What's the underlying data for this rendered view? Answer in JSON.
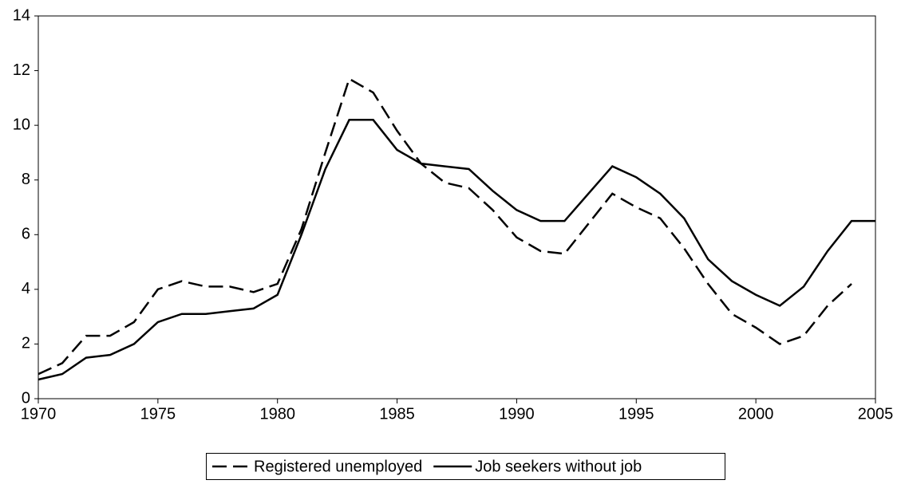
{
  "chart_data": {
    "type": "line",
    "x": [
      1970,
      1971,
      1972,
      1973,
      1974,
      1975,
      1976,
      1977,
      1978,
      1979,
      1980,
      1981,
      1982,
      1983,
      1984,
      1985,
      1986,
      1987,
      1988,
      1989,
      1990,
      1991,
      1992,
      1993,
      1994,
      1995,
      1996,
      1997,
      1998,
      1999,
      2000,
      2001,
      2002,
      2003,
      2004,
      2005
    ],
    "series": [
      {
        "name": "Registered unemployed",
        "color": "#000000",
        "line_style": "dashed",
        "values": [
          0.9,
          1.3,
          2.3,
          2.3,
          2.8,
          4.0,
          4.3,
          4.1,
          4.1,
          3.9,
          4.2,
          6.2,
          9.0,
          11.7,
          11.2,
          9.8,
          8.6,
          7.9,
          7.7,
          6.9,
          5.9,
          5.4,
          5.3,
          6.4,
          7.5,
          7.0,
          6.6,
          5.5,
          4.2,
          3.1,
          2.6,
          2.0,
          2.3,
          3.4,
          4.2,
          null
        ]
      },
      {
        "name": "Job seekers without job",
        "color": "#000000",
        "line_style": "solid",
        "values": [
          0.7,
          0.9,
          1.5,
          1.6,
          2.0,
          2.8,
          3.1,
          3.1,
          3.2,
          3.3,
          3.8,
          6.0,
          8.4,
          10.2,
          10.2,
          9.1,
          8.6,
          8.5,
          8.4,
          7.6,
          6.9,
          6.5,
          6.5,
          7.5,
          8.5,
          8.1,
          7.5,
          6.6,
          5.1,
          4.3,
          3.8,
          3.4,
          4.1,
          5.4,
          6.5,
          6.5
        ]
      }
    ],
    "xlim": [
      1970,
      2005
    ],
    "xticks": [
      1970,
      1975,
      1980,
      1985,
      1990,
      1995,
      2000,
      2005
    ],
    "ylim": [
      0,
      14
    ],
    "yticks": [
      0,
      2,
      4,
      6,
      8,
      10,
      12,
      14
    ],
    "grid": false,
    "legend": "bottom"
  }
}
